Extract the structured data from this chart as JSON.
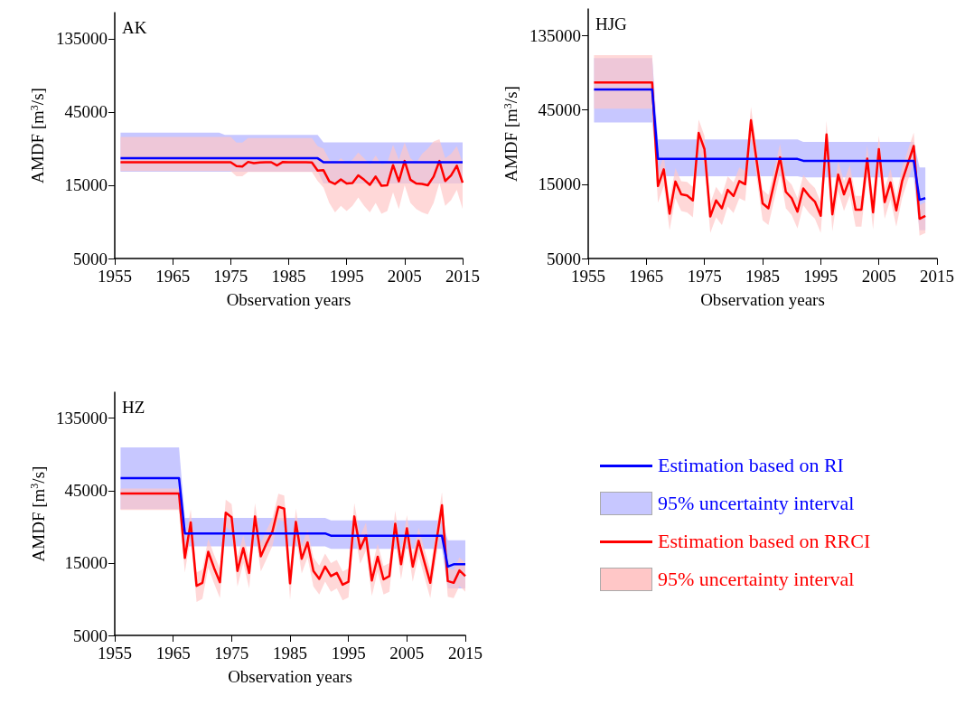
{
  "chart_data": [
    {
      "type": "line",
      "title": "AK",
      "xlabel": "Observation years",
      "ylabel": "AMDF [m$^{3}$/s]",
      "log": true,
      "legend": false,
      "xlim": [
        1955,
        2015
      ],
      "xticks": [
        1955,
        1965,
        1975,
        1985,
        1995,
        2005,
        2015
      ],
      "ylim": [
        5000,
        200000
      ],
      "yticks": [
        5000,
        15000,
        45000,
        135000
      ],
      "x": [
        1956,
        1957,
        1958,
        1959,
        1960,
        1961,
        1962,
        1963,
        1964,
        1965,
        1966,
        1967,
        1968,
        1969,
        1970,
        1971,
        1972,
        1973,
        1974,
        1975,
        1976,
        1977,
        1978,
        1979,
        1980,
        1981,
        1982,
        1983,
        1984,
        1985,
        1986,
        1987,
        1988,
        1989,
        1990,
        1991,
        1992,
        1993,
        1994,
        1995,
        1996,
        1997,
        1998,
        1999,
        2000,
        2001,
        2002,
        2003,
        2004,
        2005,
        2006,
        2007,
        2008,
        2009,
        2010,
        2011,
        2012,
        2013,
        2014,
        2015
      ],
      "series": [
        {
          "color": "#0000ff",
          "values": [
            22500,
            22500,
            22500,
            22500,
            22500,
            22500,
            22500,
            22500,
            22500,
            22500,
            22500,
            22500,
            22500,
            22500,
            22500,
            22500,
            22500,
            22500,
            22500,
            22500,
            22500,
            22500,
            22500,
            22500,
            22500,
            22500,
            22500,
            22500,
            22500,
            22500,
            22500,
            22500,
            22500,
            22500,
            22500,
            21200,
            21200,
            21200,
            21200,
            21200,
            21200,
            21200,
            21200,
            21200,
            21200,
            21200,
            21200,
            21200,
            21200,
            21200,
            21200,
            21200,
            21200,
            21200,
            21200,
            21200,
            21200,
            21200,
            21200,
            21200
          ],
          "lower": [
            18400,
            18400,
            18400,
            18400,
            18400,
            18400,
            18400,
            18400,
            18400,
            18400,
            18400,
            18400,
            18400,
            18400,
            18400,
            18400,
            18400,
            18400,
            18400,
            18400,
            18400,
            18400,
            18400,
            18400,
            18400,
            18400,
            18400,
            18400,
            18400,
            18400,
            18400,
            18400,
            18400,
            18400,
            18400,
            15400,
            15400,
            15400,
            15400,
            15400,
            15400,
            15400,
            15400,
            15400,
            15400,
            15400,
            15400,
            15400,
            15400,
            15400,
            15400,
            15400,
            15400,
            15400,
            15400,
            15400,
            15400,
            15400,
            15400,
            15400
          ],
          "upper": [
            33000,
            33000,
            33000,
            33000,
            33000,
            33000,
            33000,
            33000,
            33000,
            33000,
            33000,
            33000,
            33000,
            33000,
            33000,
            33000,
            33000,
            33000,
            32000,
            32000,
            32000,
            32000,
            32000,
            32000,
            32000,
            32000,
            32000,
            32000,
            32000,
            32000,
            32000,
            32000,
            32000,
            32000,
            32000,
            28600,
            28600,
            28600,
            28600,
            28600,
            28600,
            28600,
            28600,
            28600,
            28600,
            28600,
            28600,
            28600,
            28600,
            28600,
            28600,
            28600,
            28600,
            28600,
            28600,
            28600,
            28600,
            28600,
            28600,
            28600
          ]
        },
        {
          "color": "#ff0000",
          "values": [
            21200,
            21200,
            21200,
            21200,
            21200,
            21200,
            21200,
            21200,
            21200,
            21200,
            21200,
            21200,
            21200,
            21200,
            21200,
            21200,
            21200,
            21200,
            21200,
            21200,
            20000,
            19900,
            21300,
            20900,
            21100,
            21200,
            21200,
            20200,
            21300,
            21200,
            21200,
            21200,
            21200,
            21100,
            18700,
            18800,
            15900,
            15300,
            16400,
            15400,
            15500,
            17400,
            16300,
            15100,
            17100,
            14900,
            15000,
            20300,
            15900,
            21600,
            16300,
            15400,
            15300,
            15000,
            17100,
            21600,
            16000,
            17400,
            20100,
            15600
          ],
          "lower": [
            18600,
            18600,
            18600,
            18600,
            18600,
            18600,
            18600,
            18600,
            18600,
            18600,
            18600,
            18600,
            18600,
            18600,
            18600,
            18600,
            18600,
            18600,
            18600,
            18600,
            17200,
            17200,
            18300,
            18300,
            18300,
            18300,
            18300,
            18300,
            18300,
            18300,
            18300,
            18300,
            18300,
            18300,
            16000,
            14500,
            11500,
            10000,
            11000,
            10200,
            11000,
            12500,
            11000,
            10000,
            11500,
            9800,
            10200,
            13500,
            10500,
            15000,
            11500,
            10500,
            10000,
            9700,
            11500,
            15500,
            11000,
            12000,
            14000,
            10500
          ],
          "upper": [
            31000,
            31000,
            31000,
            31000,
            31000,
            31000,
            31000,
            31000,
            31000,
            31000,
            31000,
            31000,
            31000,
            31000,
            31000,
            31000,
            31000,
            31000,
            31000,
            31000,
            28500,
            28500,
            30500,
            30500,
            30500,
            30500,
            30500,
            30500,
            30500,
            30500,
            30500,
            30500,
            30500,
            30500,
            27000,
            26000,
            22000,
            21000,
            22500,
            21000,
            22000,
            24500,
            22500,
            20500,
            23500,
            20500,
            21000,
            27500,
            22000,
            28500,
            22500,
            21000,
            24000,
            26000,
            29000,
            30000,
            22500,
            24000,
            27000,
            21000
          ]
        }
      ]
    },
    {
      "type": "line",
      "title": "HJG",
      "xlabel": "Observation years",
      "ylabel": "AMDF [m$^{3}$/s]",
      "log": true,
      "legend": false,
      "xlim": [
        1955,
        2015
      ],
      "xticks": [
        1955,
        1965,
        1975,
        1985,
        1995,
        2005,
        2015
      ],
      "ylim": [
        5000,
        200000
      ],
      "yticks": [
        5000,
        15000,
        45000,
        135000
      ],
      "x": [
        1956,
        1957,
        1958,
        1959,
        1960,
        1961,
        1962,
        1963,
        1964,
        1965,
        1966,
        1967,
        1968,
        1969,
        1970,
        1971,
        1972,
        1973,
        1974,
        1975,
        1976,
        1977,
        1978,
        1979,
        1980,
        1981,
        1982,
        1983,
        1984,
        1985,
        1986,
        1987,
        1988,
        1989,
        1990,
        1991,
        1992,
        1993,
        1994,
        1995,
        1996,
        1997,
        1998,
        1999,
        2000,
        2001,
        2002,
        2003,
        2004,
        2005,
        2006,
        2007,
        2008,
        2009,
        2010,
        2011,
        2012,
        2013
      ],
      "series": [
        {
          "color": "#0000ff",
          "values": [
            60800,
            60800,
            60800,
            60800,
            60800,
            60800,
            60800,
            60800,
            60800,
            60800,
            60800,
            21800,
            21800,
            21800,
            21800,
            21800,
            21800,
            21800,
            21800,
            21800,
            21800,
            21800,
            21800,
            21800,
            21800,
            21800,
            21800,
            21800,
            21800,
            21800,
            21800,
            21800,
            21800,
            21800,
            21800,
            21800,
            21200,
            21200,
            21200,
            21200,
            21200,
            21200,
            21200,
            21200,
            21200,
            21200,
            21200,
            21200,
            21200,
            21200,
            21200,
            21200,
            21200,
            21200,
            21200,
            21200,
            11900,
            12200
          ],
          "lower": [
            37400,
            37400,
            37400,
            37400,
            37400,
            37400,
            37400,
            37400,
            37400,
            37400,
            37400,
            16900,
            16900,
            16900,
            16900,
            16900,
            16900,
            16900,
            16900,
            16900,
            16900,
            16900,
            16900,
            16900,
            16900,
            16900,
            16900,
            16900,
            16900,
            16900,
            16900,
            16900,
            16900,
            16900,
            16900,
            16900,
            16600,
            16600,
            16600,
            16600,
            16600,
            16600,
            16600,
            16600,
            16600,
            16600,
            16600,
            16600,
            16600,
            16600,
            16600,
            16600,
            16600,
            16600,
            16600,
            16600,
            7600,
            7600
          ],
          "upper": [
            97000,
            97000,
            97000,
            97000,
            97000,
            97000,
            97000,
            97000,
            97000,
            97000,
            97000,
            29100,
            29100,
            29100,
            29100,
            29100,
            29100,
            29100,
            29100,
            29100,
            29100,
            29100,
            29100,
            29100,
            29100,
            29100,
            29100,
            29100,
            29100,
            29100,
            29100,
            29100,
            29100,
            29100,
            29100,
            29100,
            28000,
            28000,
            28000,
            28000,
            28000,
            28000,
            28000,
            28000,
            28000,
            28000,
            28000,
            28000,
            28000,
            28000,
            28000,
            28000,
            28000,
            28000,
            28000,
            28000,
            19200,
            19200
          ]
        },
        {
          "color": "#ff0000",
          "values": [
            67500,
            67500,
            67500,
            67500,
            67500,
            67500,
            67500,
            67500,
            67500,
            67500,
            67500,
            14600,
            18700,
            9700,
            15600,
            12900,
            12700,
            11800,
            32000,
            25200,
            9300,
            11800,
            10500,
            13800,
            12600,
            15700,
            15000,
            38600,
            20900,
            11300,
            10500,
            15300,
            22300,
            13400,
            12200,
            10000,
            14100,
            12600,
            11600,
            9400,
            31300,
            9600,
            17300,
            12900,
            16300,
            10300,
            10300,
            21900,
            9900,
            25200,
            11500,
            15400,
            10200,
            15700,
            20400,
            26400,
            9000,
            9400
          ],
          "lower": [
            45800,
            45800,
            45800,
            45800,
            45800,
            45800,
            45800,
            45800,
            45800,
            45800,
            45800,
            11400,
            14600,
            7600,
            12200,
            10100,
            9900,
            9200,
            25000,
            19700,
            7300,
            9200,
            8200,
            10800,
            9800,
            12200,
            11700,
            30100,
            16300,
            8800,
            8200,
            11900,
            17400,
            10500,
            9500,
            7800,
            11000,
            9800,
            9000,
            7300,
            24400,
            7500,
            13500,
            10100,
            12700,
            8000,
            8000,
            17100,
            7700,
            19700,
            9000,
            12000,
            8000,
            12200,
            15900,
            20600,
            7000,
            7300
          ],
          "upper": [
            101000,
            101000,
            101000,
            101000,
            101000,
            101000,
            101000,
            101000,
            101000,
            101000,
            101000,
            17800,
            22800,
            11800,
            19000,
            15700,
            15500,
            14400,
            39000,
            30700,
            11300,
            14400,
            12800,
            16800,
            15400,
            19200,
            18300,
            47100,
            25500,
            13800,
            12800,
            18700,
            27200,
            16300,
            14900,
            12200,
            17200,
            15400,
            14200,
            11500,
            38200,
            11700,
            21100,
            15700,
            19900,
            12600,
            12600,
            26700,
            12100,
            30700,
            14000,
            18800,
            12400,
            19200,
            24900,
            32200,
            11000,
            11500
          ]
        }
      ]
    },
    {
      "type": "line",
      "title": "HZ",
      "xlabel": "Observation years",
      "ylabel": "AMDF [m$^{3}$/s]",
      "log": true,
      "legend": "right",
      "annotations": [
        "95% uncertainty interval",
        "95% uncertainty interval"
      ],
      "xlim": [
        1955,
        2015
      ],
      "xticks": [
        1955,
        1965,
        1975,
        1985,
        1995,
        2005,
        2015
      ],
      "ylim": [
        5000,
        200000
      ],
      "yticks": [
        5000,
        15000,
        45000,
        135000
      ],
      "x": [
        1956,
        1957,
        1958,
        1959,
        1960,
        1961,
        1962,
        1963,
        1964,
        1965,
        1966,
        1967,
        1968,
        1969,
        1970,
        1971,
        1972,
        1973,
        1974,
        1975,
        1976,
        1977,
        1978,
        1979,
        1980,
        1981,
        1982,
        1983,
        1984,
        1985,
        1986,
        1987,
        1988,
        1989,
        1990,
        1991,
        1992,
        1993,
        1994,
        1995,
        1996,
        1997,
        1998,
        1999,
        2000,
        2001,
        2002,
        2003,
        2004,
        2005,
        2006,
        2007,
        2008,
        2009,
        2010,
        2011,
        2012,
        2013,
        2014,
        2015
      ],
      "series": [
        {
          "name": "Estimation based on RI",
          "color": "#0000ff",
          "values": [
            54300,
            54300,
            54300,
            54300,
            54300,
            54300,
            54300,
            54300,
            54300,
            54300,
            54300,
            23500,
            23500,
            23500,
            23500,
            23500,
            23500,
            23500,
            23500,
            23500,
            23500,
            23500,
            23500,
            23500,
            23500,
            23500,
            23500,
            23500,
            23500,
            23500,
            23500,
            23500,
            23500,
            23500,
            23500,
            23500,
            22700,
            22700,
            22700,
            22700,
            22700,
            22700,
            22700,
            22700,
            22700,
            22700,
            22700,
            22700,
            22700,
            22700,
            22700,
            22700,
            22700,
            22700,
            22700,
            22700,
            14200,
            14700,
            14700,
            14700
          ],
          "lower": [
            34000,
            34000,
            34000,
            34000,
            34000,
            34000,
            34000,
            34000,
            34000,
            34000,
            34000,
            19300,
            19300,
            19300,
            19300,
            19300,
            19300,
            19300,
            19300,
            19300,
            19300,
            19300,
            19300,
            19300,
            19300,
            19300,
            19300,
            19300,
            19300,
            19300,
            19300,
            19300,
            19300,
            19300,
            19300,
            19300,
            18600,
            18600,
            18600,
            18600,
            18600,
            18600,
            18600,
            18600,
            18600,
            18600,
            18600,
            18600,
            18600,
            18600,
            18600,
            18600,
            18600,
            18600,
            18600,
            18600,
            10200,
            10200,
            10200,
            10200
          ],
          "upper": [
            86700,
            86700,
            86700,
            86700,
            86700,
            86700,
            86700,
            86700,
            86700,
            86700,
            86700,
            29700,
            29700,
            29700,
            29700,
            29700,
            29700,
            29700,
            29700,
            29700,
            29700,
            29700,
            29700,
            29700,
            29700,
            29700,
            29700,
            29700,
            29700,
            29700,
            29700,
            29700,
            29700,
            29700,
            29700,
            29700,
            28600,
            28600,
            28600,
            28600,
            28600,
            28600,
            28600,
            28600,
            28600,
            28600,
            28600,
            28600,
            28600,
            28600,
            28600,
            28600,
            28600,
            28600,
            28600,
            28600,
            21200,
            21200,
            21200,
            21200
          ]
        },
        {
          "name": "Estimation based on RRCI",
          "color": "#ff0000",
          "values": [
            43000,
            43000,
            43000,
            43000,
            43000,
            43000,
            43000,
            43000,
            43000,
            43000,
            43000,
            16200,
            27800,
            10600,
            11100,
            17800,
            13900,
            11200,
            32200,
            30000,
            13300,
            18800,
            12900,
            30400,
            16600,
            20300,
            24300,
            35200,
            34200,
            11000,
            28000,
            16000,
            20500,
            13300,
            11800,
            14200,
            12300,
            12900,
            10800,
            11300,
            30400,
            18600,
            22700,
            11500,
            16500,
            11700,
            12300,
            27200,
            14700,
            25400,
            14200,
            21000,
            15200,
            11100,
            20300,
            36000,
            11400,
            11100,
            13400,
            12300
          ],
          "lower": [
            33500,
            33500,
            33500,
            33500,
            33500,
            33500,
            33500,
            33500,
            33500,
            33500,
            33500,
            13000,
            22500,
            8300,
            8700,
            14000,
            11000,
            8800,
            26000,
            24000,
            10500,
            15000,
            10200,
            24500,
            13200,
            16000,
            19500,
            29000,
            28000,
            8600,
            22500,
            12800,
            16300,
            10500,
            9300,
            11300,
            9700,
            10200,
            8500,
            8900,
            24500,
            14800,
            18100,
            9100,
            13200,
            9300,
            9700,
            21900,
            11700,
            20400,
            11300,
            16800,
            12100,
            8800,
            16200,
            29000,
            9000,
            8800,
            10600,
            9700
          ],
          "upper": [
            46500,
            46500,
            46500,
            46500,
            46500,
            46500,
            46500,
            46500,
            46500,
            46500,
            46500,
            19800,
            33900,
            13000,
            13600,
            21700,
            17000,
            13700,
            39300,
            36600,
            16300,
            22900,
            15700,
            37100,
            20300,
            24800,
            29600,
            42900,
            41700,
            13400,
            34200,
            19500,
            25000,
            16300,
            14400,
            17300,
            15000,
            15700,
            13200,
            13800,
            37100,
            22700,
            27700,
            14000,
            20100,
            14300,
            15000,
            33200,
            17900,
            31000,
            17300,
            25600,
            18500,
            13500,
            24800,
            43900,
            13900,
            13500,
            16300,
            15000
          ]
        }
      ]
    }
  ]
}
